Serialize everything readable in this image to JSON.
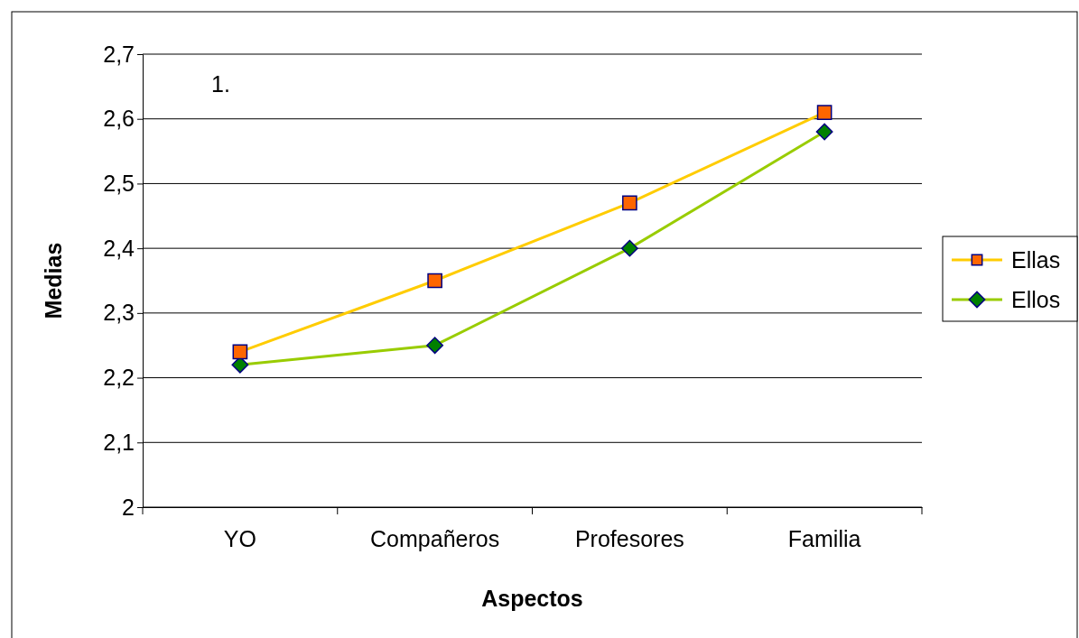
{
  "chart_data": {
    "type": "line",
    "xlabel": "Aspectos",
    "ylabel": "Medias",
    "annotations": [
      "1."
    ],
    "categories": [
      "YO",
      "Compañeros",
      "Profesores",
      "Familia"
    ],
    "series": [
      {
        "name": "Ellas",
        "color": "#ffcc00",
        "colors": [
          "#ff6600",
          "#ff6600",
          "#ff6600",
          "#ff6600"
        ],
        "marker": "square",
        "values": [
          2.24,
          2.35,
          2.47,
          2.61
        ]
      },
      {
        "name": "Ellos",
        "color": "#99cc00",
        "colors": [
          "#008000",
          "#008000",
          "#008000",
          "#008000"
        ],
        "marker": "diamond",
        "values": [
          2.22,
          2.25,
          2.4,
          2.58
        ]
      }
    ],
    "ylim": [
      2,
      2.7
    ],
    "yticks": [
      2,
      {
        "value": 2.1,
        "label": "2,1"
      },
      {
        "value": 2.2,
        "label": "2,2"
      },
      {
        "value": 2.3,
        "label": "2,3"
      },
      {
        "value": 2.4,
        "label": "2,4"
      },
      {
        "value": 2.5,
        "label": "2,5"
      },
      {
        "value": 2.6,
        "label": "2,6"
      },
      {
        "value": 2.7,
        "label": "2,7"
      }
    ],
    "grid": "y",
    "legend": "right",
    "line_style": "solid"
  }
}
